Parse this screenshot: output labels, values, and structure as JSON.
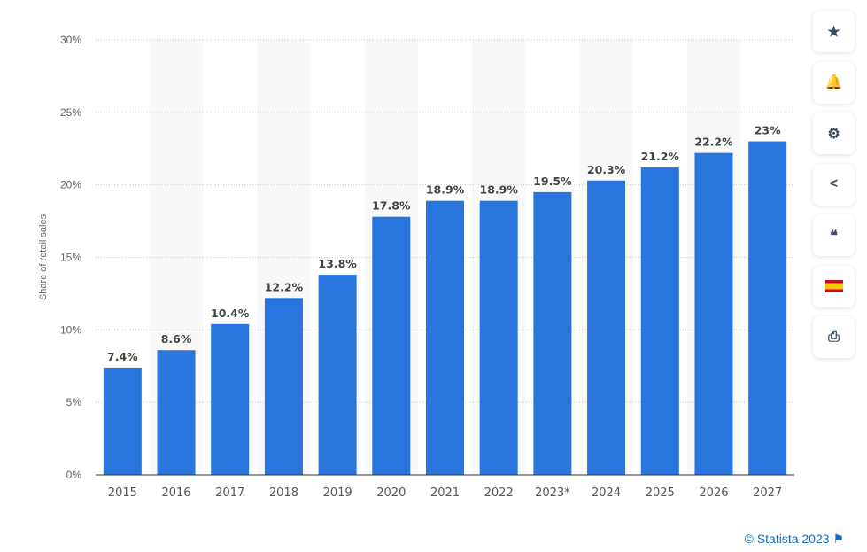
{
  "chart_data": {
    "type": "bar",
    "categories": [
      "2015",
      "2016",
      "2017",
      "2018",
      "2019",
      "2020",
      "2021",
      "2022",
      "2023*",
      "2024",
      "2025",
      "2026",
      "2027"
    ],
    "values": [
      7.4,
      8.6,
      10.4,
      12.2,
      13.8,
      17.8,
      18.9,
      18.9,
      19.5,
      20.3,
      21.2,
      22.2,
      23
    ],
    "data_labels": [
      "7.4%",
      "8.6%",
      "10.4%",
      "12.2%",
      "13.8%",
      "17.8%",
      "18.9%",
      "18.9%",
      "19.5%",
      "20.3%",
      "21.2%",
      "22.2%",
      "23%"
    ],
    "ylabel": "Share of retail sales",
    "ylim": [
      0,
      30
    ],
    "yticks": [
      0,
      5,
      10,
      15,
      20,
      25,
      30
    ],
    "ytick_labels": [
      "0%",
      "5%",
      "10%",
      "15%",
      "20%",
      "25%",
      "30%"
    ],
    "grid": true,
    "bar_color": "#2876dd"
  },
  "sidebar": [
    {
      "icon": "star-icon",
      "glyph": "★"
    },
    {
      "icon": "bell-icon",
      "glyph": "🔔"
    },
    {
      "icon": "gear-icon",
      "glyph": "⚙"
    },
    {
      "icon": "share-icon",
      "glyph": "<"
    },
    {
      "icon": "quote-icon",
      "glyph": "❝"
    },
    {
      "icon": "spain-flag-icon",
      "glyph": ""
    },
    {
      "icon": "print-icon",
      "glyph": "⎙"
    }
  ],
  "credit": "© Statista 2023",
  "credit_icon": "flag-icon"
}
